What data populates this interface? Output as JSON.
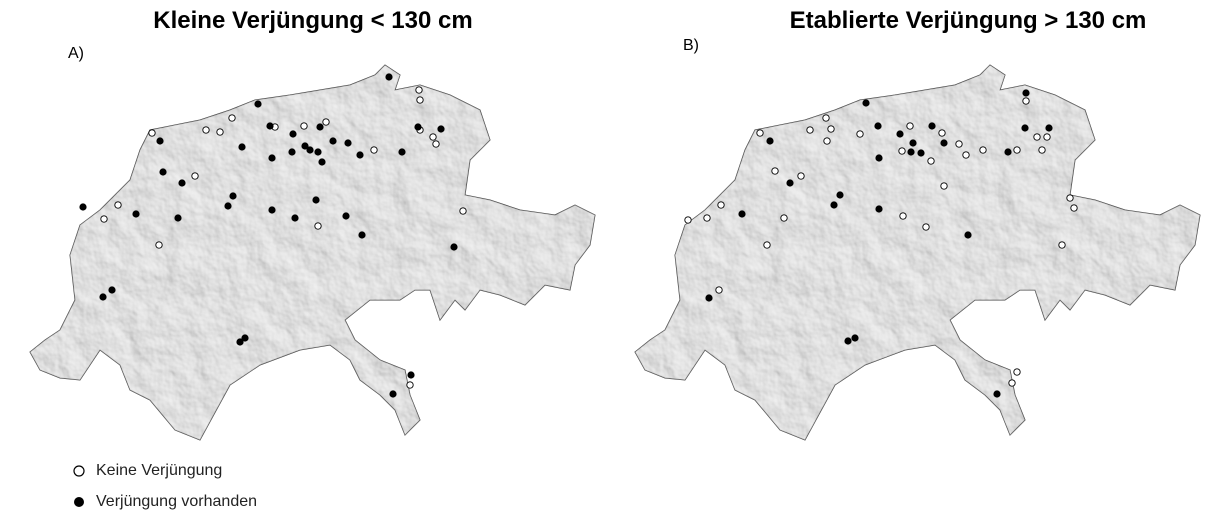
{
  "legend": {
    "absent": "Keine Verjüngung",
    "present": "Verjüngung vorhanden"
  },
  "maps": [
    {
      "title": "Kleine Verjüngung < 130 cm",
      "label": "A)",
      "present": [
        [
          389,
          77
        ],
        [
          258,
          104
        ],
        [
          160,
          141
        ],
        [
          270,
          126
        ],
        [
          293,
          134
        ],
        [
          320,
          127
        ],
        [
          242,
          147
        ],
        [
          305,
          146
        ],
        [
          292,
          152
        ],
        [
          310,
          150
        ],
        [
          318,
          152
        ],
        [
          333,
          141
        ],
        [
          348,
          143
        ],
        [
          360,
          155
        ],
        [
          402,
          152
        ],
        [
          418,
          127
        ],
        [
          441,
          129
        ],
        [
          163,
          172
        ],
        [
          182,
          183
        ],
        [
          272,
          158
        ],
        [
          322,
          162
        ],
        [
          233,
          196
        ],
        [
          228,
          206
        ],
        [
          136,
          214
        ],
        [
          178,
          218
        ],
        [
          272,
          210
        ],
        [
          295,
          218
        ],
        [
          316,
          200
        ],
        [
          346,
          216
        ],
        [
          83,
          207
        ],
        [
          362,
          235
        ],
        [
          454,
          247
        ],
        [
          112,
          290
        ],
        [
          103,
          297
        ],
        [
          240,
          342
        ],
        [
          245,
          338
        ],
        [
          411,
          375
        ],
        [
          393,
          394
        ]
      ],
      "absent": [
        [
          419,
          90
        ],
        [
          420,
          100
        ],
        [
          152,
          133
        ],
        [
          206,
          130
        ],
        [
          220,
          132
        ],
        [
          232,
          118
        ],
        [
          275,
          127
        ],
        [
          304,
          126
        ],
        [
          326,
          122
        ],
        [
          374,
          150
        ],
        [
          433,
          137
        ],
        [
          436,
          144
        ],
        [
          420,
          130
        ],
        [
          195,
          176
        ],
        [
          118,
          205
        ],
        [
          104,
          219
        ],
        [
          318,
          226
        ],
        [
          159,
          245
        ],
        [
          463,
          211
        ],
        [
          410,
          385
        ]
      ]
    },
    {
      "title": "Etablierte Verjüngung > 130 cm",
      "label": "B)",
      "present": [
        [
          421,
          93
        ],
        [
          261,
          103
        ],
        [
          165,
          141
        ],
        [
          273,
          126
        ],
        [
          295,
          134
        ],
        [
          308,
          143
        ],
        [
          306,
          152
        ],
        [
          316,
          153
        ],
        [
          327,
          126
        ],
        [
          339,
          143
        ],
        [
          403,
          152
        ],
        [
          420,
          128
        ],
        [
          444,
          128
        ],
        [
          185,
          183
        ],
        [
          274,
          158
        ],
        [
          235,
          195
        ],
        [
          229,
          205
        ],
        [
          137,
          214
        ],
        [
          274,
          209
        ],
        [
          363,
          235
        ],
        [
          104,
          298
        ],
        [
          243,
          341
        ],
        [
          250,
          338
        ],
        [
          392,
          394
        ]
      ],
      "absent": [
        [
          421,
          101
        ],
        [
          155,
          133
        ],
        [
          205,
          130
        ],
        [
          221,
          118
        ],
        [
          226,
          129
        ],
        [
          222,
          141
        ],
        [
          255,
          134
        ],
        [
          305,
          126
        ],
        [
          337,
          133
        ],
        [
          354,
          144
        ],
        [
          361,
          155
        ],
        [
          378,
          150
        ],
        [
          432,
          137
        ],
        [
          442,
          137
        ],
        [
          412,
          150
        ],
        [
          437,
          150
        ],
        [
          297,
          151
        ],
        [
          326,
          161
        ],
        [
          170,
          171
        ],
        [
          196,
          176
        ],
        [
          339,
          186
        ],
        [
          116,
          205
        ],
        [
          102,
          218
        ],
        [
          83,
          220
        ],
        [
          179,
          218
        ],
        [
          298,
          216
        ],
        [
          321,
          227
        ],
        [
          162,
          245
        ],
        [
          457,
          245
        ],
        [
          465,
          198
        ],
        [
          469,
          208
        ],
        [
          114,
          290
        ],
        [
          412,
          372
        ],
        [
          407,
          383
        ]
      ]
    }
  ]
}
